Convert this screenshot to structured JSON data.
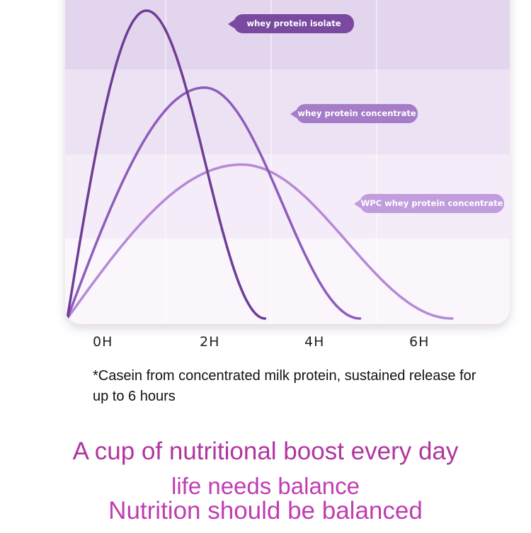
{
  "chart_data": {
    "type": "line",
    "title": "",
    "xlabel": "",
    "ylabel": "",
    "x_ticks": [
      "0H",
      "2H",
      "4H",
      "6H"
    ],
    "x_unit": "hours",
    "grid": true,
    "legend_placement": "inline callouts right of each curve",
    "series": [
      {
        "name": "whey protein isolate",
        "color": "#6e3d96",
        "label_color": "#7a4aa0",
        "start_h": 0,
        "peak_h": 1.5,
        "peak_level": 100,
        "end_h": 3.75
      },
      {
        "name": "whey protein concentrate",
        "color": "#8e5cbb",
        "label_color": "#a57cc8",
        "start_h": 0,
        "peak_h": 2.6,
        "peak_level": 75,
        "end_h": 5.55
      },
      {
        "name": "WPC whey protein concentrate",
        "color": "#b48ad6",
        "label_color": "#c09ddc",
        "start_h": 0,
        "peak_h": 3.3,
        "peak_level": 50,
        "end_h": 7.3
      }
    ]
  },
  "footnote": "*Casein from concentrated milk protein, sustained release for up to 6 hours",
  "headline": "A cup of nutritional boost every day",
  "subline1": "life needs balance",
  "subline2": "Nutrition should be balanced",
  "colors": {
    "headline": "#b0369f",
    "subline": "#c03db2"
  }
}
